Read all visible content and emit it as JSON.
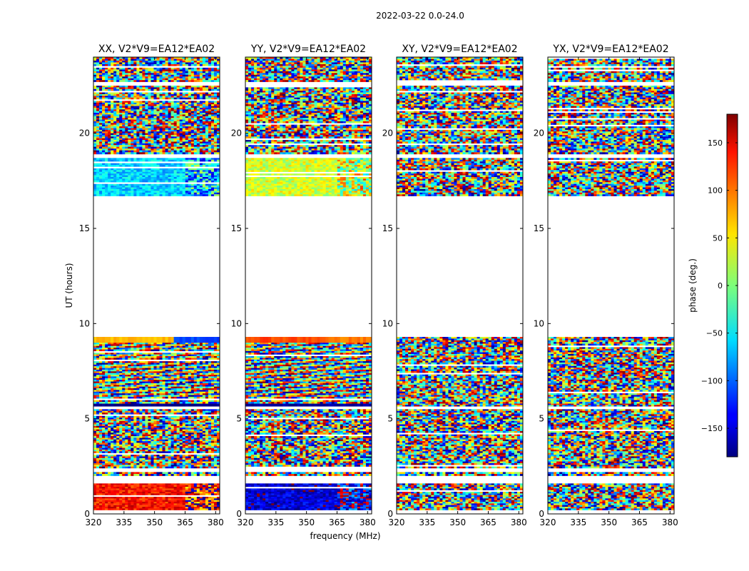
{
  "figure": {
    "suptitle": "2022-03-22 0.0-24.0",
    "xlabel": "frequency (MHz)",
    "ylabel": "UT (hours)",
    "colorbar": {
      "label": "phase (deg.)",
      "range": [
        -180,
        180
      ],
      "ticks": [
        150,
        100,
        50,
        0,
        -50,
        -100,
        -150
      ],
      "tick_labels": [
        "150",
        "100",
        "50",
        "0",
        "−50",
        "−100",
        "−150"
      ],
      "colormap": "jet"
    }
  },
  "chart_data": {
    "type": "heatmap",
    "xlim": [
      320,
      382
    ],
    "ylim": [
      0,
      24
    ],
    "xticks": [
      320,
      335,
      350,
      365,
      380
    ],
    "xtick_labels": [
      "320",
      "335",
      "350",
      "365",
      "380"
    ],
    "yticks": [
      0,
      5,
      10,
      15,
      20
    ],
    "ytick_labels": [
      "0",
      "5",
      "10",
      "15",
      "20"
    ],
    "panels": [
      {
        "title": "XX, V2*V9=EA12*EA02",
        "bands": [
          {
            "y": [
              0.2,
              1.6
            ],
            "kind": "biased",
            "phase": 130
          },
          {
            "y": [
              2.0,
              2.2
            ],
            "kind": "noise"
          },
          {
            "y": [
              2.4,
              4.0
            ],
            "kind": "noise"
          },
          {
            "y": [
              4.0,
              5.5
            ],
            "kind": "noise"
          },
          {
            "y": [
              5.65,
              5.8
            ],
            "kind": "solid",
            "phase": -180
          },
          {
            "y": [
              5.8,
              9.0
            ],
            "kind": "fringe"
          },
          {
            "y": [
              9.0,
              9.3
            ],
            "kind": "solid",
            "phase": 70,
            "phase2": -110
          },
          {
            "y": [
              16.7,
              18.7
            ],
            "kind": "biased",
            "phase": -60
          },
          {
            "y": [
              18.9,
              19.2
            ],
            "kind": "noise"
          },
          {
            "y": [
              19.2,
              22.5
            ],
            "kind": "noise"
          },
          {
            "y": [
              22.7,
              24.0
            ],
            "kind": "noise"
          }
        ]
      },
      {
        "title": "YY, V2*V9=EA12*EA02",
        "bands": [
          {
            "y": [
              0.2,
              1.6
            ],
            "kind": "biased",
            "phase": -150
          },
          {
            "y": [
              2.0,
              2.2
            ],
            "kind": "noise"
          },
          {
            "y": [
              2.4,
              4.0
            ],
            "kind": "noise"
          },
          {
            "y": [
              4.0,
              5.5
            ],
            "kind": "noise"
          },
          {
            "y": [
              5.65,
              5.8
            ],
            "kind": "solid",
            "phase": -170
          },
          {
            "y": [
              5.8,
              9.0
            ],
            "kind": "fringe"
          },
          {
            "y": [
              9.0,
              9.3
            ],
            "kind": "solid",
            "phase": 110,
            "phase2": 90
          },
          {
            "y": [
              16.7,
              18.7
            ],
            "kind": "biased",
            "phase": 30
          },
          {
            "y": [
              18.9,
              19.2
            ],
            "kind": "noise"
          },
          {
            "y": [
              19.2,
              22.5
            ],
            "kind": "noise"
          },
          {
            "y": [
              22.7,
              24.0
            ],
            "kind": "noise"
          }
        ]
      },
      {
        "title": "XY, V2*V9=EA12*EA02",
        "bands": [
          {
            "y": [
              0.2,
              1.6
            ],
            "kind": "noise"
          },
          {
            "y": [
              2.0,
              2.2
            ],
            "kind": "noise"
          },
          {
            "y": [
              2.4,
              4.0
            ],
            "kind": "noise"
          },
          {
            "y": [
              4.0,
              5.5
            ],
            "kind": "noise"
          },
          {
            "y": [
              5.65,
              5.8
            ],
            "kind": "noise"
          },
          {
            "y": [
              5.8,
              9.3
            ],
            "kind": "noise"
          },
          {
            "y": [
              16.7,
              18.7
            ],
            "kind": "noise"
          },
          {
            "y": [
              18.9,
              19.2
            ],
            "kind": "noise"
          },
          {
            "y": [
              19.2,
              22.5
            ],
            "kind": "noise"
          },
          {
            "y": [
              22.7,
              24.0
            ],
            "kind": "noise"
          }
        ]
      },
      {
        "title": "YX, V2*V9=EA12*EA02",
        "bands": [
          {
            "y": [
              0.2,
              1.6
            ],
            "kind": "noise"
          },
          {
            "y": [
              2.0,
              2.2
            ],
            "kind": "noise"
          },
          {
            "y": [
              2.4,
              4.0
            ],
            "kind": "noise"
          },
          {
            "y": [
              4.0,
              5.5
            ],
            "kind": "noise"
          },
          {
            "y": [
              5.65,
              5.8
            ],
            "kind": "noise"
          },
          {
            "y": [
              5.8,
              9.3
            ],
            "kind": "noise"
          },
          {
            "y": [
              16.7,
              18.7
            ],
            "kind": "noise"
          },
          {
            "y": [
              18.9,
              19.2
            ],
            "kind": "noise"
          },
          {
            "y": [
              19.2,
              22.5
            ],
            "kind": "noise"
          },
          {
            "y": [
              22.7,
              24.0
            ],
            "kind": "noise"
          }
        ]
      }
    ]
  }
}
